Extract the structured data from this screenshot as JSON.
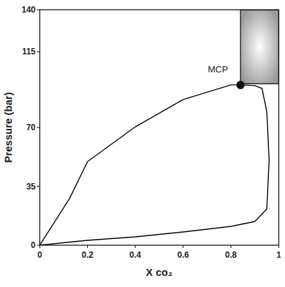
{
  "chart_data": {
    "type": "line",
    "xlabel": "X co₂",
    "ylabel": "Pressure (bar)",
    "x": [
      0,
      0.125,
      0.2,
      0.4,
      0.6,
      0.8,
      0.84,
      0.9,
      0.93,
      0.95,
      0.96,
      0.95,
      0.9,
      0.8,
      0.6,
      0.4,
      0.2,
      0.17,
      0
    ],
    "values": [
      0,
      27.8,
      49.7,
      70.4,
      86.6,
      95.3,
      95.3,
      94.9,
      93.2,
      79.5,
      50.5,
      21.5,
      14.1,
      11.2,
      7.9,
      5.0,
      2.9,
      2.5,
      0
    ],
    "color": "#000000",
    "xlim": [
      0,
      1
    ],
    "ylim": [
      0,
      140
    ],
    "xticks": [
      0,
      0.2,
      0.4,
      0.6,
      0.8,
      1
    ],
    "yticks": [
      0,
      35,
      70,
      115,
      140
    ],
    "annotations": [
      {
        "text": "MCP",
        "x": 0.84,
        "y": 95.3
      }
    ],
    "shaded_region": {
      "xlim": [
        0.84,
        1
      ],
      "ylim": [
        96,
        140
      ]
    }
  }
}
